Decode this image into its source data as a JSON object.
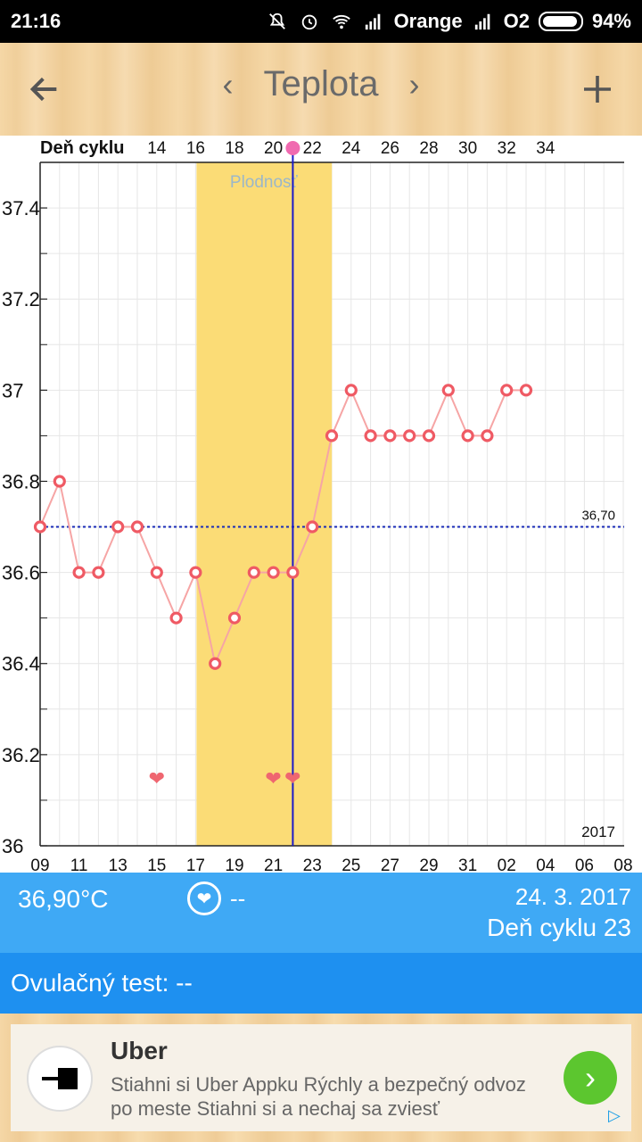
{
  "status": {
    "time": "21:16",
    "carrier1": "Orange",
    "carrier2": "O2",
    "battery": "94%"
  },
  "header": {
    "title": "Teplota"
  },
  "chart_data": {
    "type": "line",
    "cycle_label": "Deň cyklu",
    "cycle_ticks": [
      "14",
      "16",
      "18",
      "20",
      "22",
      "24",
      "26",
      "28",
      "30",
      "32",
      "34"
    ],
    "y_ticks": [
      "37.4",
      "37.2",
      "37",
      "36.8",
      "36.6",
      "36.4",
      "36.2",
      "36"
    ],
    "ylim": [
      36.0,
      37.5
    ],
    "date_ticks": [
      "09",
      "11",
      "13",
      "15",
      "17",
      "19",
      "21",
      "23",
      "25",
      "27",
      "29",
      "31",
      "02",
      "04",
      "06",
      "08"
    ],
    "year": "2017",
    "fertile_label": "Plodnosť",
    "fertile_range": [
      17,
      23
    ],
    "coverline": 36.7,
    "coverline_label": "36,70",
    "current_cycle_day": 22,
    "intercourse_days": [
      15,
      21,
      22
    ],
    "points": [
      36.7,
      36.8,
      36.6,
      36.6,
      36.7,
      36.7,
      36.6,
      36.5,
      36.6,
      36.4,
      36.5,
      36.6,
      36.6,
      36.6,
      36.7,
      36.9,
      37.0,
      36.9,
      36.9,
      36.9,
      36.9,
      37.0,
      36.9,
      36.9,
      37.0,
      37.0
    ]
  },
  "info": {
    "temperature": "36,90°C",
    "heart_value": "--",
    "date": "24. 3. 2017",
    "cycle_day": "Deň cyklu 23"
  },
  "ovulation": {
    "label": "Ovulačný test: --"
  },
  "ad": {
    "name": "Uber",
    "description": "Stiahni si Uber Appku Rýchly a bezpečný odvoz po meste Stiahni si a nechaj sa zviesť"
  }
}
